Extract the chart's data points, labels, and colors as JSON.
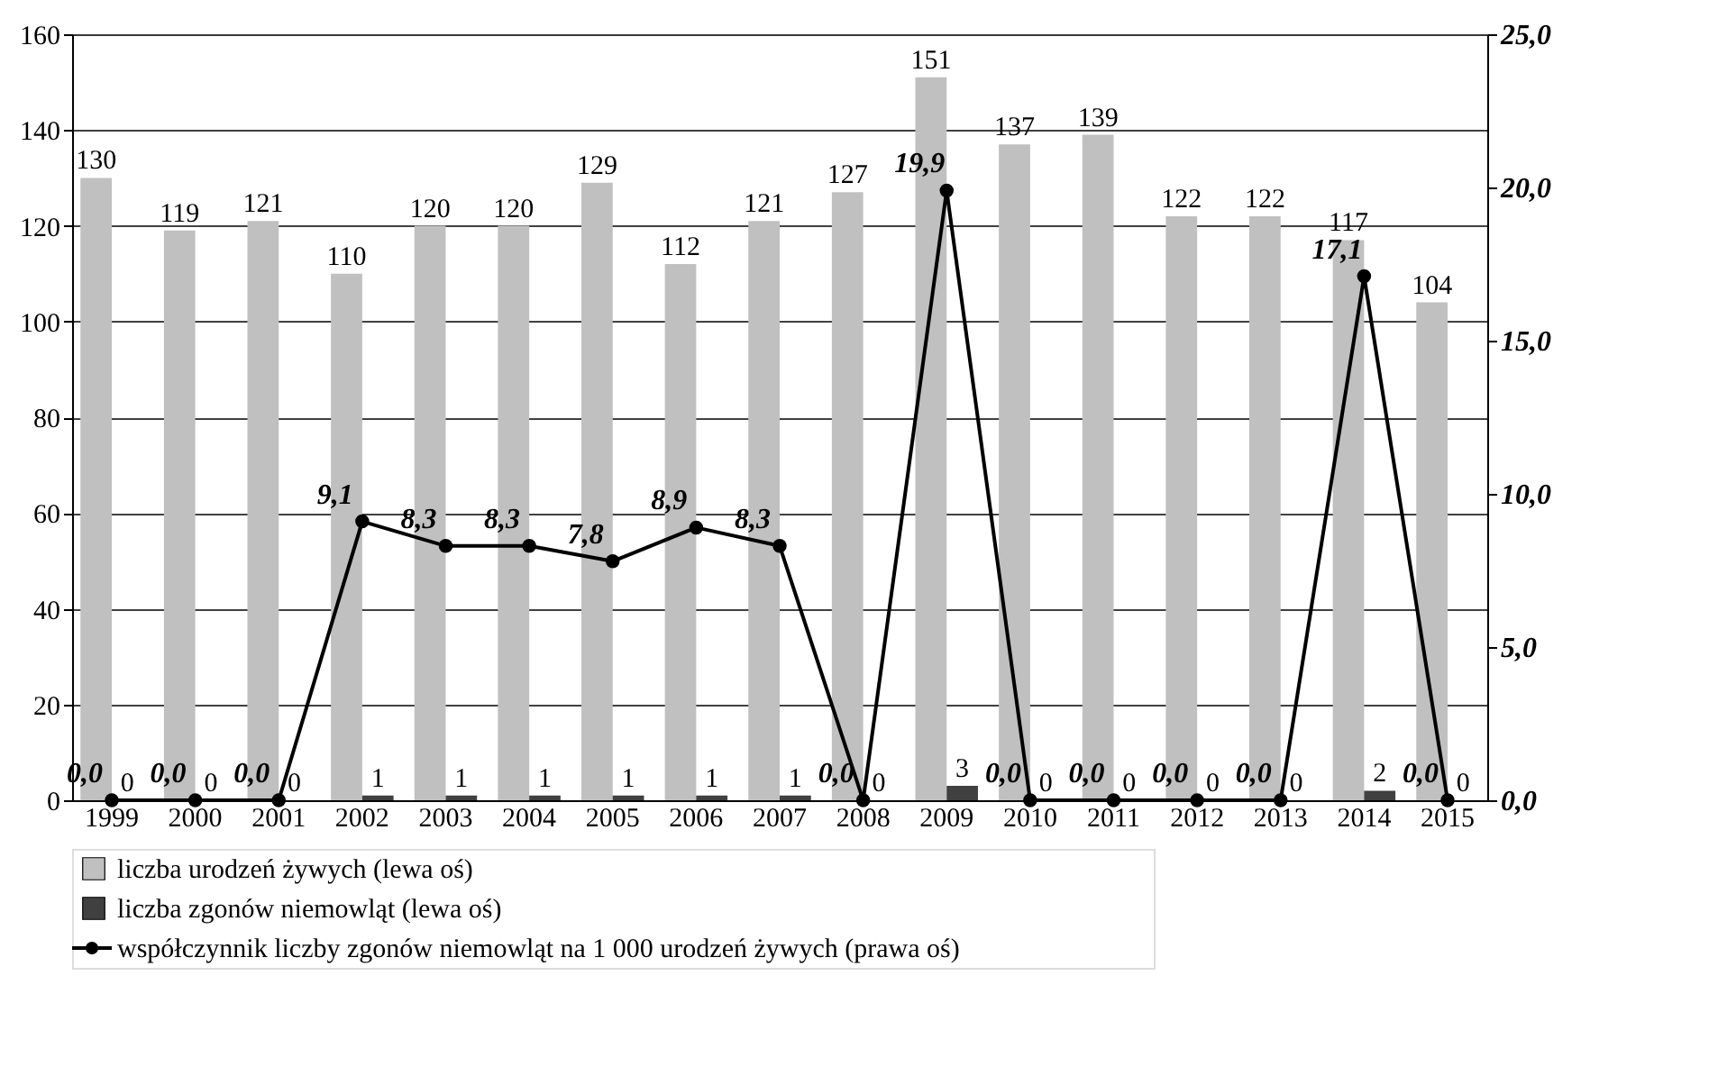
{
  "chart_data": {
    "type": "bar",
    "categories": [
      "1999",
      "2000",
      "2001",
      "2002",
      "2003",
      "2004",
      "2005",
      "2006",
      "2007",
      "2008",
      "2009",
      "2010",
      "2011",
      "2012",
      "2013",
      "2014",
      "2015"
    ],
    "series": [
      {
        "name": "liczba urodzeń żywych (lewa oś)",
        "color": "#c0c0c0",
        "type": "bar",
        "values": [
          130,
          119,
          121,
          110,
          120,
          120,
          129,
          112,
          121,
          127,
          151,
          137,
          139,
          122,
          122,
          117,
          104
        ]
      },
      {
        "name": "liczba zgonów niemowląt (lewa oś)",
        "color": "#404040",
        "type": "bar",
        "values": [
          0,
          0,
          0,
          1,
          1,
          1,
          1,
          1,
          1,
          0,
          3,
          0,
          0,
          0,
          0,
          2,
          0
        ]
      },
      {
        "name": "współczynnik liczby zgonów niemowląt na 1 000 urodzeń żywych (prawa oś)",
        "color": "#000000",
        "type": "line",
        "axis": "y2",
        "marker": "circle",
        "values": [
          0.0,
          0.0,
          0.0,
          9.1,
          8.3,
          8.3,
          7.8,
          8.9,
          8.3,
          0.0,
          19.9,
          0.0,
          0.0,
          0.0,
          0.0,
          17.1,
          0.0
        ],
        "value_labels": [
          "0,0",
          "0,0",
          "0,0",
          "9,1",
          "8,3",
          "8,3",
          "7,8",
          "8,9",
          "8,3",
          "0,0",
          "19,9",
          "0,0",
          "0,0",
          "0,0",
          "0,0",
          "17,1",
          "0,0"
        ]
      }
    ],
    "data_labels": true,
    "ylim": [
      0,
      160
    ],
    "yticks": [
      0,
      20,
      40,
      60,
      80,
      100,
      120,
      140,
      160
    ],
    "y2lim": [
      0,
      25
    ],
    "y2ticks": [
      {
        "value": 0,
        "label": "0,0"
      },
      {
        "value": 5,
        "label": "5,0"
      },
      {
        "value": 10,
        "label": "10,0"
      },
      {
        "value": 15,
        "label": "15,0"
      },
      {
        "value": 20,
        "label": "20,0"
      },
      {
        "value": 25,
        "label": "25,0"
      }
    ],
    "grid": "y",
    "legend": "bottom"
  }
}
